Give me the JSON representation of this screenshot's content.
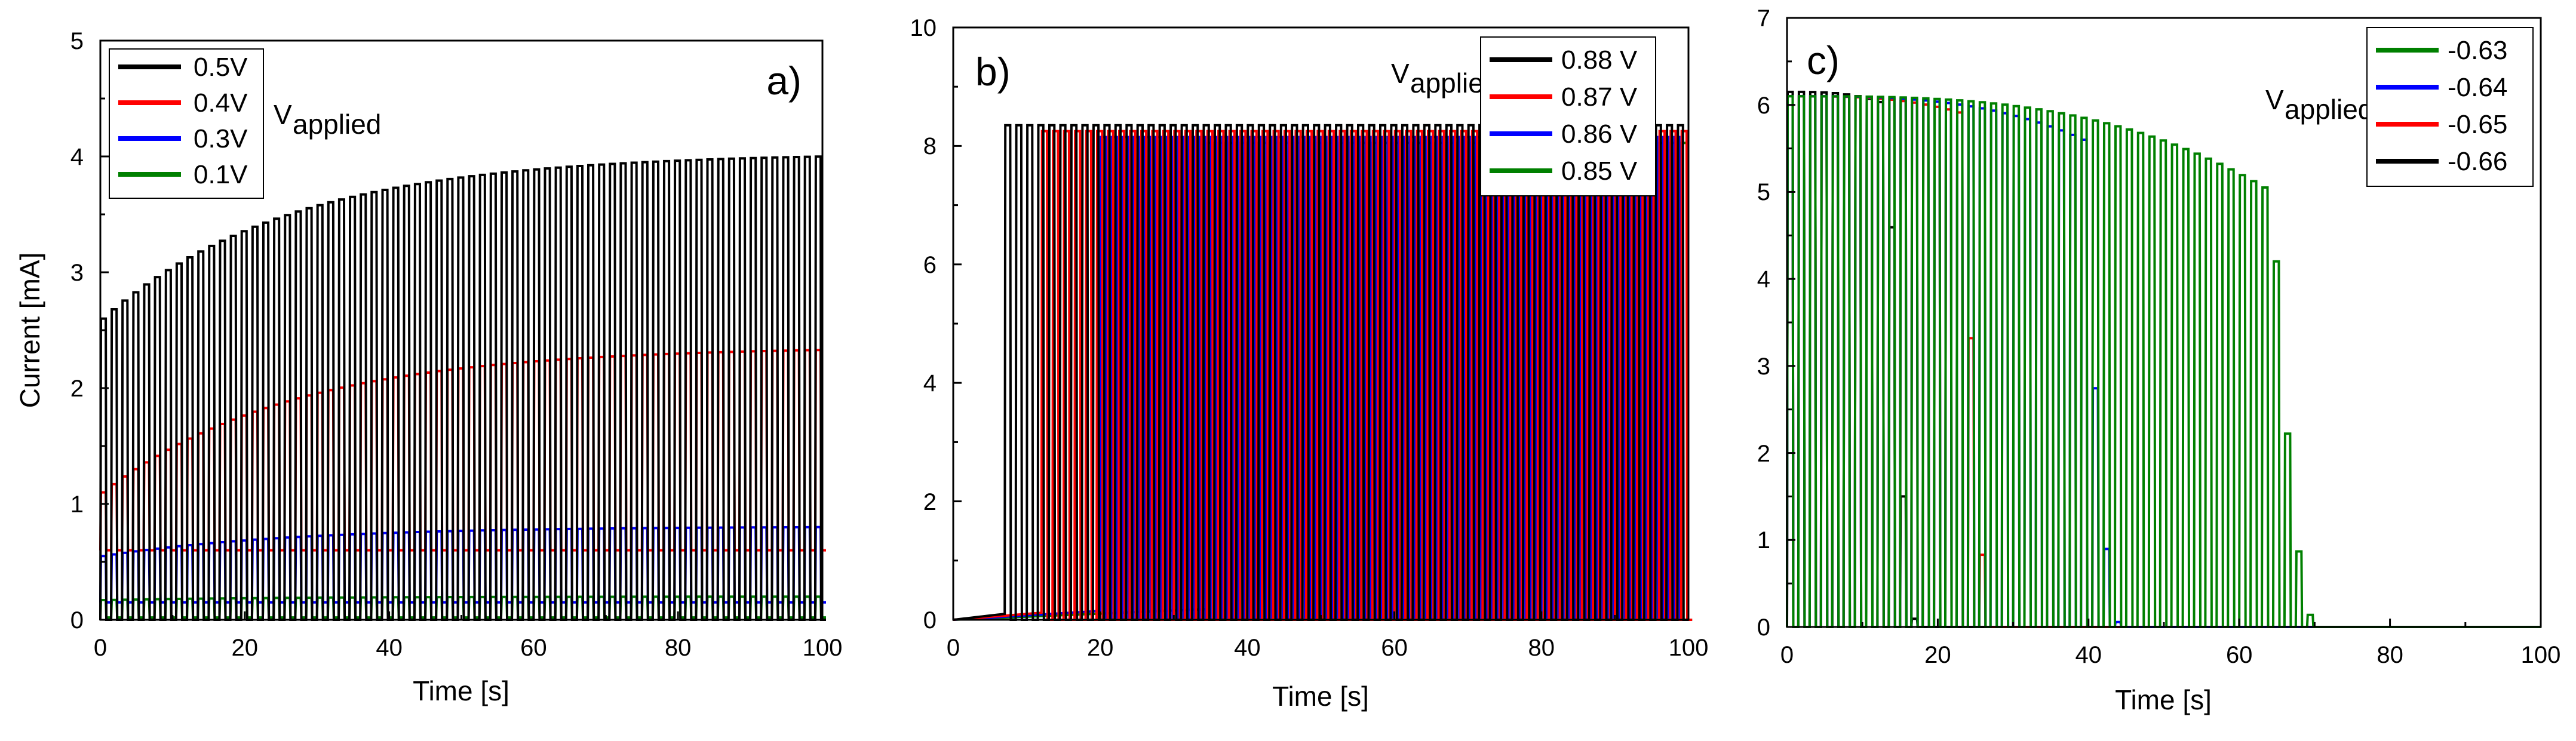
{
  "chart_data": [
    {
      "type": "line",
      "panel_label": "a)",
      "xlabel": "Time [s]",
      "ylabel": "Current [mA]",
      "xlim": [
        0,
        100
      ],
      "ylim": [
        0,
        5
      ],
      "xticks": [
        "0",
        "20",
        "40",
        "60",
        "80",
        "100"
      ],
      "yticks": [
        "0",
        "1",
        "2",
        "3",
        "4",
        "5"
      ],
      "annotation": {
        "main": "V",
        "sub": "applied"
      },
      "series": [
        {
          "name": "0.5V",
          "color": "#000000",
          "t_on": 0,
          "t_stop": 99,
          "low": 0.0,
          "high_start": 2.6,
          "high_end": 4.0,
          "curve": "rise"
        },
        {
          "name": "0.4V",
          "color": "#ff0000",
          "t_on": 0,
          "t_stop": 99,
          "low": 0.6,
          "high_start": 1.1,
          "high_end": 2.33,
          "curve": "rise"
        },
        {
          "name": "0.3V",
          "color": "#0000ff",
          "t_on": 0,
          "t_stop": 99,
          "low": 0.15,
          "high_start": 0.55,
          "high_end": 0.8,
          "curve": "rise"
        },
        {
          "name": "0.1V",
          "color": "#008000",
          "t_on": 0,
          "t_stop": 99,
          "low": 0.02,
          "high_start": 0.17,
          "high_end": 0.2,
          "curve": "rise"
        }
      ]
    },
    {
      "type": "line",
      "panel_label": "b)",
      "xlabel": "Time [s]",
      "ylabel": "",
      "xlim": [
        0,
        100
      ],
      "ylim": [
        0,
        10
      ],
      "xticks": [
        "0",
        "20",
        "40",
        "60",
        "80",
        "100"
      ],
      "yticks": [
        "0",
        "2",
        "4",
        "6",
        "8",
        "10"
      ],
      "annotation": {
        "main": "V",
        "sub": "applied"
      },
      "series": [
        {
          "name": "0.88 V",
          "color": "#000000",
          "t_on": 7,
          "t_stop": 99,
          "low": 0.0,
          "high_start": 8.35,
          "high_end": 8.35,
          "curve": "switch_on",
          "pre_level": 0.1
        },
        {
          "name": "0.87 V",
          "color": "#ff0000",
          "t_on": 12,
          "t_stop": 99,
          "low": 0.0,
          "high_start": 8.25,
          "high_end": 8.25,
          "curve": "switch_on",
          "pre_level": 0.12
        },
        {
          "name": "0.86 V",
          "color": "#0000ff",
          "t_on": 20,
          "t_stop": 99,
          "low": 0.0,
          "high_start": 8.15,
          "high_end": 8.15,
          "curve": "switch_on",
          "pre_level": 0.15
        },
        {
          "name": "0.85 V",
          "color": "#008000",
          "t_on": 34.5,
          "t_stop": 99,
          "low": 0.0,
          "high_start": 8.05,
          "high_end": 8.05,
          "curve": "switch_on",
          "pre_level": 0.18
        }
      ]
    },
    {
      "type": "line",
      "panel_label": "c)",
      "xlabel": "Time [s]",
      "ylabel": "",
      "xlim": [
        0,
        100
      ],
      "ylim": [
        0,
        7
      ],
      "xticks": [
        "0",
        "20",
        "40",
        "60",
        "80",
        "100"
      ],
      "yticks": [
        "0",
        "1",
        "2",
        "3",
        "4",
        "5",
        "6",
        "7"
      ],
      "annotation": {
        "main": "V",
        "sub": "applied"
      },
      "series": [
        {
          "name": "-0.63",
          "color": "#008000",
          "t_on": 0,
          "t_off": 64,
          "t_stop": 70,
          "low": 0.0,
          "high_start": 6.1,
          "high_end": 5.0,
          "curve": "decay"
        },
        {
          "name": "-0.64",
          "color": "#0000ff",
          "t_on": 0,
          "t_off": 39,
          "t_stop": 44,
          "low": 0.0,
          "high_start": 6.1,
          "high_end": 5.6,
          "curve": "decay"
        },
        {
          "name": "-0.65",
          "color": "#ff0000",
          "t_on": 0,
          "t_off": 23,
          "t_stop": 27,
          "low": 0.0,
          "high_start": 6.1,
          "high_end": 5.9,
          "curve": "decay"
        },
        {
          "name": "-0.66",
          "color": "#000000",
          "t_on": 0,
          "t_off": 13,
          "t_stop": 17,
          "low": 0.0,
          "high_start": 6.15,
          "high_end": 6.0,
          "curve": "decay"
        }
      ]
    }
  ]
}
